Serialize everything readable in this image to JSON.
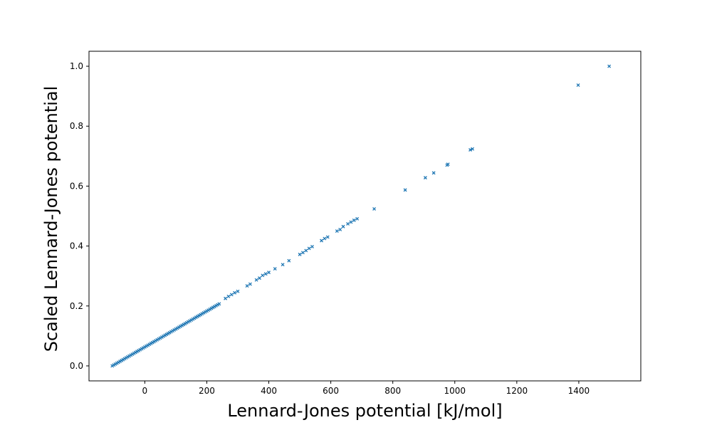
{
  "chart_data": {
    "type": "scatter",
    "title": "",
    "xlabel": "Lennard-Jones potential [kJ/mol]",
    "ylabel": "Scaled Lennard-Jones potential",
    "xlim": [
      -180,
      1600
    ],
    "ylim": [
      -0.05,
      1.05
    ],
    "xticks": [
      0,
      200,
      400,
      600,
      800,
      1000,
      1200,
      1400
    ],
    "xtick_labels": [
      "0",
      "200",
      "400",
      "600",
      "800",
      "1000",
      "1200",
      "1400"
    ],
    "yticks": [
      0.0,
      0.2,
      0.4,
      0.6,
      0.8,
      1.0
    ],
    "ytick_labels": [
      "0.0",
      "0.2",
      "0.4",
      "0.6",
      "0.8",
      "1.0"
    ],
    "grid": false,
    "legend": "none",
    "marker": "x",
    "color": "#1f77b4",
    "series": [
      {
        "points": [
          [
            -105,
            0.0
          ],
          [
            -100,
            0.003
          ],
          [
            -95,
            0.006
          ],
          [
            -90,
            0.009
          ],
          [
            -85,
            0.012
          ],
          [
            -80,
            0.015
          ],
          [
            -75,
            0.018
          ],
          [
            -70,
            0.021
          ],
          [
            -65,
            0.024
          ],
          [
            -60,
            0.027
          ],
          [
            -55,
            0.03
          ],
          [
            -50,
            0.033
          ],
          [
            -45,
            0.036
          ],
          [
            -40,
            0.039
          ],
          [
            -35,
            0.042
          ],
          [
            -30,
            0.045
          ],
          [
            -25,
            0.048
          ],
          [
            -20,
            0.051
          ],
          [
            -15,
            0.054
          ],
          [
            -10,
            0.057
          ],
          [
            -5,
            0.06
          ],
          [
            0,
            0.063
          ],
          [
            5,
            0.066
          ],
          [
            10,
            0.069
          ],
          [
            15,
            0.072
          ],
          [
            20,
            0.075
          ],
          [
            25,
            0.078
          ],
          [
            30,
            0.081
          ],
          [
            35,
            0.084
          ],
          [
            40,
            0.087
          ],
          [
            45,
            0.09
          ],
          [
            50,
            0.093
          ],
          [
            55,
            0.096
          ],
          [
            60,
            0.099
          ],
          [
            65,
            0.102
          ],
          [
            70,
            0.105
          ],
          [
            75,
            0.108
          ],
          [
            80,
            0.111
          ],
          [
            85,
            0.114
          ],
          [
            90,
            0.117
          ],
          [
            95,
            0.12
          ],
          [
            100,
            0.123
          ],
          [
            105,
            0.126
          ],
          [
            110,
            0.129
          ],
          [
            115,
            0.132
          ],
          [
            120,
            0.135
          ],
          [
            125,
            0.138
          ],
          [
            130,
            0.141
          ],
          [
            135,
            0.144
          ],
          [
            140,
            0.147
          ],
          [
            145,
            0.15
          ],
          [
            150,
            0.153
          ],
          [
            155,
            0.156
          ],
          [
            160,
            0.159
          ],
          [
            165,
            0.162
          ],
          [
            170,
            0.165
          ],
          [
            175,
            0.168
          ],
          [
            180,
            0.171
          ],
          [
            185,
            0.174
          ],
          [
            190,
            0.177
          ],
          [
            195,
            0.18
          ],
          [
            200,
            0.183
          ],
          [
            205,
            0.186
          ],
          [
            210,
            0.189
          ],
          [
            215,
            0.192
          ],
          [
            220,
            0.195
          ],
          [
            225,
            0.198
          ],
          [
            230,
            0.201
          ],
          [
            235,
            0.204
          ],
          [
            240,
            0.207
          ],
          [
            260,
            0.225
          ],
          [
            270,
            0.232
          ],
          [
            280,
            0.238
          ],
          [
            290,
            0.244
          ],
          [
            300,
            0.249
          ],
          [
            330,
            0.267
          ],
          [
            340,
            0.273
          ],
          [
            360,
            0.287
          ],
          [
            370,
            0.293
          ],
          [
            380,
            0.302
          ],
          [
            390,
            0.307
          ],
          [
            400,
            0.312
          ],
          [
            420,
            0.324
          ],
          [
            445,
            0.338
          ],
          [
            465,
            0.351
          ],
          [
            500,
            0.372
          ],
          [
            510,
            0.378
          ],
          [
            520,
            0.385
          ],
          [
            530,
            0.392
          ],
          [
            540,
            0.398
          ],
          [
            570,
            0.418
          ],
          [
            580,
            0.425
          ],
          [
            590,
            0.43
          ],
          [
            620,
            0.45
          ],
          [
            630,
            0.455
          ],
          [
            640,
            0.465
          ],
          [
            655,
            0.474
          ],
          [
            665,
            0.48
          ],
          [
            675,
            0.486
          ],
          [
            685,
            0.491
          ],
          [
            740,
            0.524
          ],
          [
            840,
            0.587
          ],
          [
            905,
            0.628
          ],
          [
            932,
            0.644
          ],
          [
            975,
            0.67
          ],
          [
            978,
            0.673
          ],
          [
            1050,
            0.721
          ],
          [
            1057,
            0.724
          ],
          [
            1398,
            0.937
          ],
          [
            1498,
            1.0
          ]
        ]
      }
    ]
  }
}
